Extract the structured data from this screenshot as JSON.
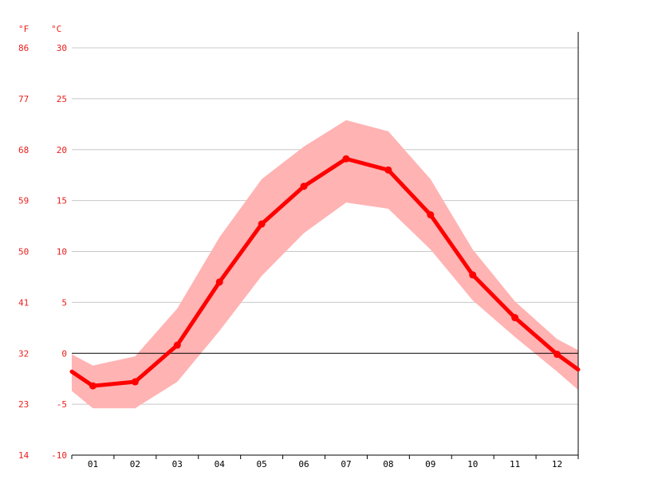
{
  "chart_data": {
    "type": "line",
    "unit_labels": {
      "fahrenheit": "°F",
      "celsius": "°C"
    },
    "months": [
      "01",
      "02",
      "03",
      "04",
      "05",
      "06",
      "07",
      "08",
      "09",
      "10",
      "11",
      "12"
    ],
    "y_ticks_c": [
      30,
      25,
      20,
      15,
      10,
      5,
      0,
      -5,
      -10
    ],
    "y_ticks_f": [
      86,
      77,
      68,
      59,
      50,
      41,
      32,
      23,
      14
    ],
    "ylim": [
      -10,
      30
    ],
    "mean": [
      -3.2,
      -2.8,
      0.8,
      7.0,
      12.7,
      16.4,
      19.1,
      18.0,
      13.6,
      7.7,
      3.5,
      -0.1
    ],
    "low": [
      -5.4,
      -5.4,
      -2.8,
      2.2,
      7.6,
      11.8,
      14.8,
      14.2,
      10.2,
      5.2,
      1.6,
      -1.8
    ],
    "high": [
      -1.2,
      -0.3,
      4.4,
      11.4,
      17.1,
      20.3,
      22.9,
      21.8,
      17.1,
      10.2,
      5.1,
      1.4
    ],
    "edge_left": {
      "mean": -1.8,
      "low": -3.7,
      "high": -0.1
    },
    "edge_right": {
      "mean": -1.6,
      "low": -3.6,
      "high": 0.3
    },
    "colors": {
      "line": "#ff0000",
      "band": "#ffb3b3",
      "axis_text": "#e8201e",
      "grid": "#c8c8c8",
      "zero_line": "#000000"
    },
    "grid": true
  }
}
